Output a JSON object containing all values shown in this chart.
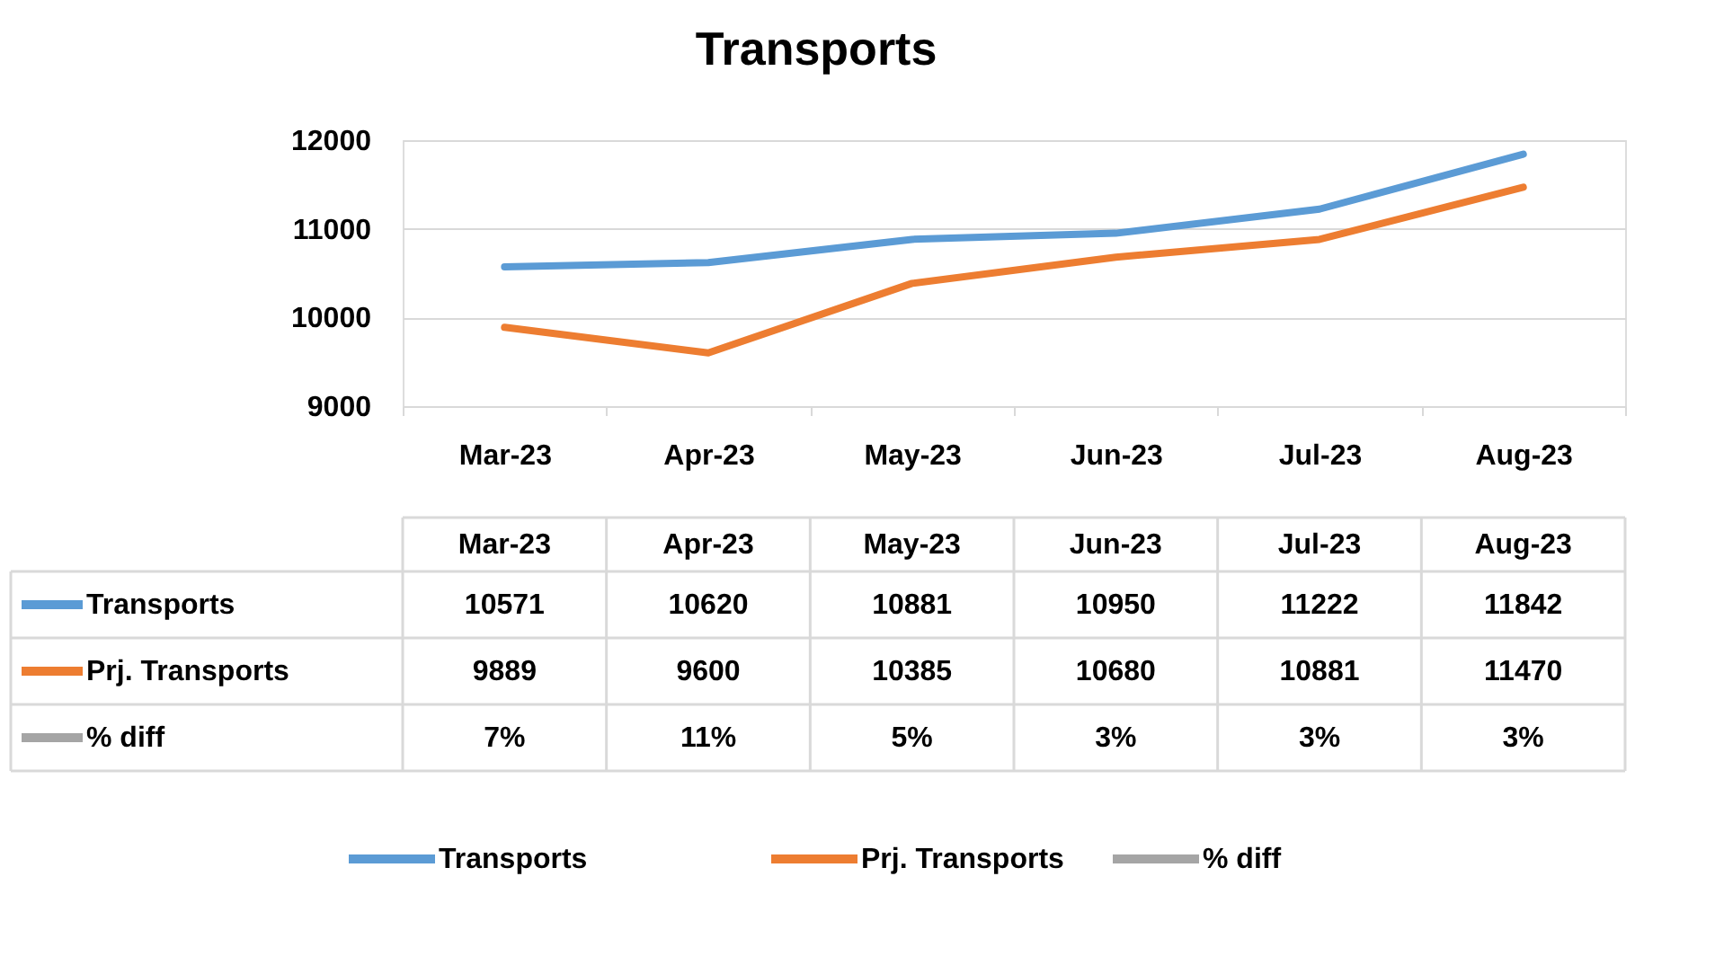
{
  "chart_data": {
    "type": "line",
    "title": "Transports",
    "categories": [
      "Mar-23",
      "Apr-23",
      "May-23",
      "Jun-23",
      "Jul-23",
      "Aug-23"
    ],
    "series": [
      {
        "name": "Transports",
        "color": "#5b9bd5",
        "values": [
          10571,
          10620,
          10881,
          10950,
          11222,
          11842
        ]
      },
      {
        "name": "Prj. Transports",
        "color": "#ed7d31",
        "values": [
          9889,
          9600,
          10385,
          10680,
          10881,
          11470
        ]
      },
      {
        "name": "% diff",
        "color": "#a5a5a5",
        "values": [
          null,
          null,
          null,
          null,
          null,
          null
        ],
        "value_labels": [
          "7%",
          "11%",
          "5%",
          "3%",
          "3%",
          "3%"
        ]
      }
    ],
    "ylim": [
      9000,
      12000
    ],
    "yticks": [
      9000,
      10000,
      11000,
      12000
    ],
    "grid": "y",
    "data_labels": true,
    "legend": "bottom"
  }
}
